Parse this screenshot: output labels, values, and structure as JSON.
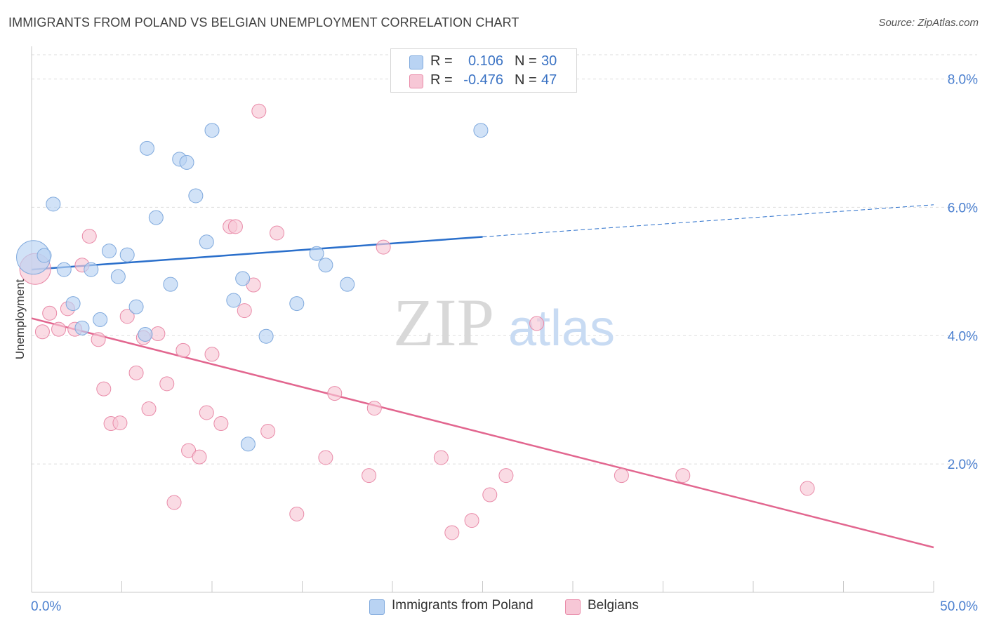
{
  "title": "IMMIGRANTS FROM POLAND VS BELGIAN UNEMPLOYMENT CORRELATION CHART",
  "source": "Source: ZipAtlas.com",
  "watermark": {
    "zip": "ZIP",
    "atlas": "atlas"
  },
  "colors": {
    "blue_fill": "#b9d3f3",
    "blue_stroke": "#7fa9dd",
    "blue_line": "#2a6fcb",
    "pink_fill": "#f7c7d6",
    "pink_stroke": "#e98aa8",
    "pink_line": "#e2668f",
    "axis_text": "#4a7fcf",
    "grid": "#dddddd"
  },
  "legend": {
    "rows": [
      {
        "series": "blue",
        "r_label": "R =",
        "r_value": "0.106",
        "n_label": "N =",
        "n_value": "30"
      },
      {
        "series": "pink",
        "r_label": "R =",
        "r_value": "-0.476",
        "n_label": "N =",
        "n_value": "47"
      }
    ]
  },
  "bottom_legend": [
    {
      "series": "blue",
      "label": "Immigrants from Poland"
    },
    {
      "series": "pink",
      "label": "Belgians"
    }
  ],
  "chart_data": {
    "type": "scatter",
    "title": "IMMIGRANTS FROM POLAND VS BELGIAN UNEMPLOYMENT CORRELATION CHART",
    "xlabel": "",
    "ylabel": "Unemployment",
    "xlim": [
      0,
      50
    ],
    "ylim": [
      0,
      8.4
    ],
    "x_tick_labels": [
      "0.0%",
      "50.0%"
    ],
    "y_ticks": [
      2,
      4,
      6,
      8
    ],
    "y_tick_labels": [
      "2.0%",
      "4.0%",
      "6.0%",
      "8.0%"
    ],
    "grid": true,
    "legend_position": "top-center",
    "series": [
      {
        "name": "Immigrants from Poland",
        "color": "blue",
        "trend": {
          "x": [
            0,
            25
          ],
          "y": [
            5.03,
            5.54
          ],
          "dashed_to_x": 50,
          "dashed_to_y": 6.04
        },
        "points": [
          [
            0.1,
            5.22,
            24
          ],
          [
            0.7,
            5.25,
            10
          ],
          [
            1.2,
            6.05,
            10
          ],
          [
            1.8,
            5.03,
            10
          ],
          [
            2.3,
            4.5,
            10
          ],
          [
            2.8,
            4.12,
            10
          ],
          [
            3.3,
            5.03,
            10
          ],
          [
            3.8,
            4.25,
            10
          ],
          [
            4.3,
            5.32,
            10
          ],
          [
            4.8,
            4.92,
            10
          ],
          [
            5.3,
            5.26,
            10
          ],
          [
            5.8,
            4.45,
            10
          ],
          [
            6.3,
            4.02,
            10
          ],
          [
            6.4,
            6.92,
            10
          ],
          [
            6.9,
            5.84,
            10
          ],
          [
            7.7,
            4.8,
            10
          ],
          [
            8.2,
            6.75,
            10
          ],
          [
            8.6,
            6.7,
            10
          ],
          [
            9.1,
            6.18,
            10
          ],
          [
            9.7,
            5.46,
            10
          ],
          [
            10.0,
            7.2,
            10
          ],
          [
            11.2,
            4.55,
            10
          ],
          [
            11.7,
            4.89,
            10
          ],
          [
            12.0,
            2.31,
            10
          ],
          [
            13.0,
            3.99,
            10
          ],
          [
            14.7,
            4.5,
            10
          ],
          [
            15.8,
            5.28,
            10
          ],
          [
            16.3,
            5.1,
            10
          ],
          [
            17.5,
            4.8,
            10
          ],
          [
            24.9,
            7.2,
            10
          ]
        ]
      },
      {
        "name": "Belgians",
        "color": "pink",
        "trend": {
          "x": [
            0,
            50
          ],
          "y": [
            4.27,
            0.7
          ]
        },
        "points": [
          [
            0.2,
            5.04,
            22
          ],
          [
            0.6,
            4.06,
            10
          ],
          [
            1.0,
            4.35,
            10
          ],
          [
            1.5,
            4.1,
            10
          ],
          [
            2.0,
            4.42,
            10
          ],
          [
            2.4,
            4.1,
            10
          ],
          [
            2.8,
            5.1,
            10
          ],
          [
            3.2,
            5.55,
            10
          ],
          [
            3.7,
            3.94,
            10
          ],
          [
            4.0,
            3.17,
            10
          ],
          [
            4.4,
            2.63,
            10
          ],
          [
            4.9,
            2.64,
            10
          ],
          [
            5.3,
            4.3,
            10
          ],
          [
            5.8,
            3.42,
            10
          ],
          [
            6.2,
            3.97,
            10
          ],
          [
            6.5,
            2.86,
            10
          ],
          [
            7.0,
            4.03,
            10
          ],
          [
            7.5,
            3.25,
            10
          ],
          [
            7.9,
            1.4,
            10
          ],
          [
            8.4,
            3.77,
            10
          ],
          [
            8.7,
            2.21,
            10
          ],
          [
            9.3,
            2.11,
            10
          ],
          [
            9.7,
            2.8,
            10
          ],
          [
            10.0,
            3.71,
            10
          ],
          [
            10.5,
            2.63,
            10
          ],
          [
            11.0,
            5.7,
            10
          ],
          [
            11.3,
            5.7,
            10
          ],
          [
            11.8,
            4.39,
            10
          ],
          [
            12.3,
            4.79,
            10
          ],
          [
            12.6,
            7.5,
            10
          ],
          [
            13.1,
            2.51,
            10
          ],
          [
            13.6,
            5.6,
            10
          ],
          [
            14.7,
            1.22,
            10
          ],
          [
            16.3,
            2.1,
            10
          ],
          [
            16.8,
            3.1,
            10
          ],
          [
            18.7,
            1.82,
            10
          ],
          [
            19.0,
            2.87,
            10
          ],
          [
            19.5,
            5.38,
            10
          ],
          [
            22.7,
            2.1,
            10
          ],
          [
            23.3,
            0.93,
            10
          ],
          [
            24.4,
            1.12,
            10
          ],
          [
            25.4,
            1.52,
            10
          ],
          [
            26.3,
            1.82,
            10
          ],
          [
            28.0,
            4.19,
            10
          ],
          [
            32.7,
            1.82,
            10
          ],
          [
            36.1,
            1.82,
            10
          ],
          [
            43.0,
            1.62,
            10
          ]
        ]
      }
    ]
  }
}
